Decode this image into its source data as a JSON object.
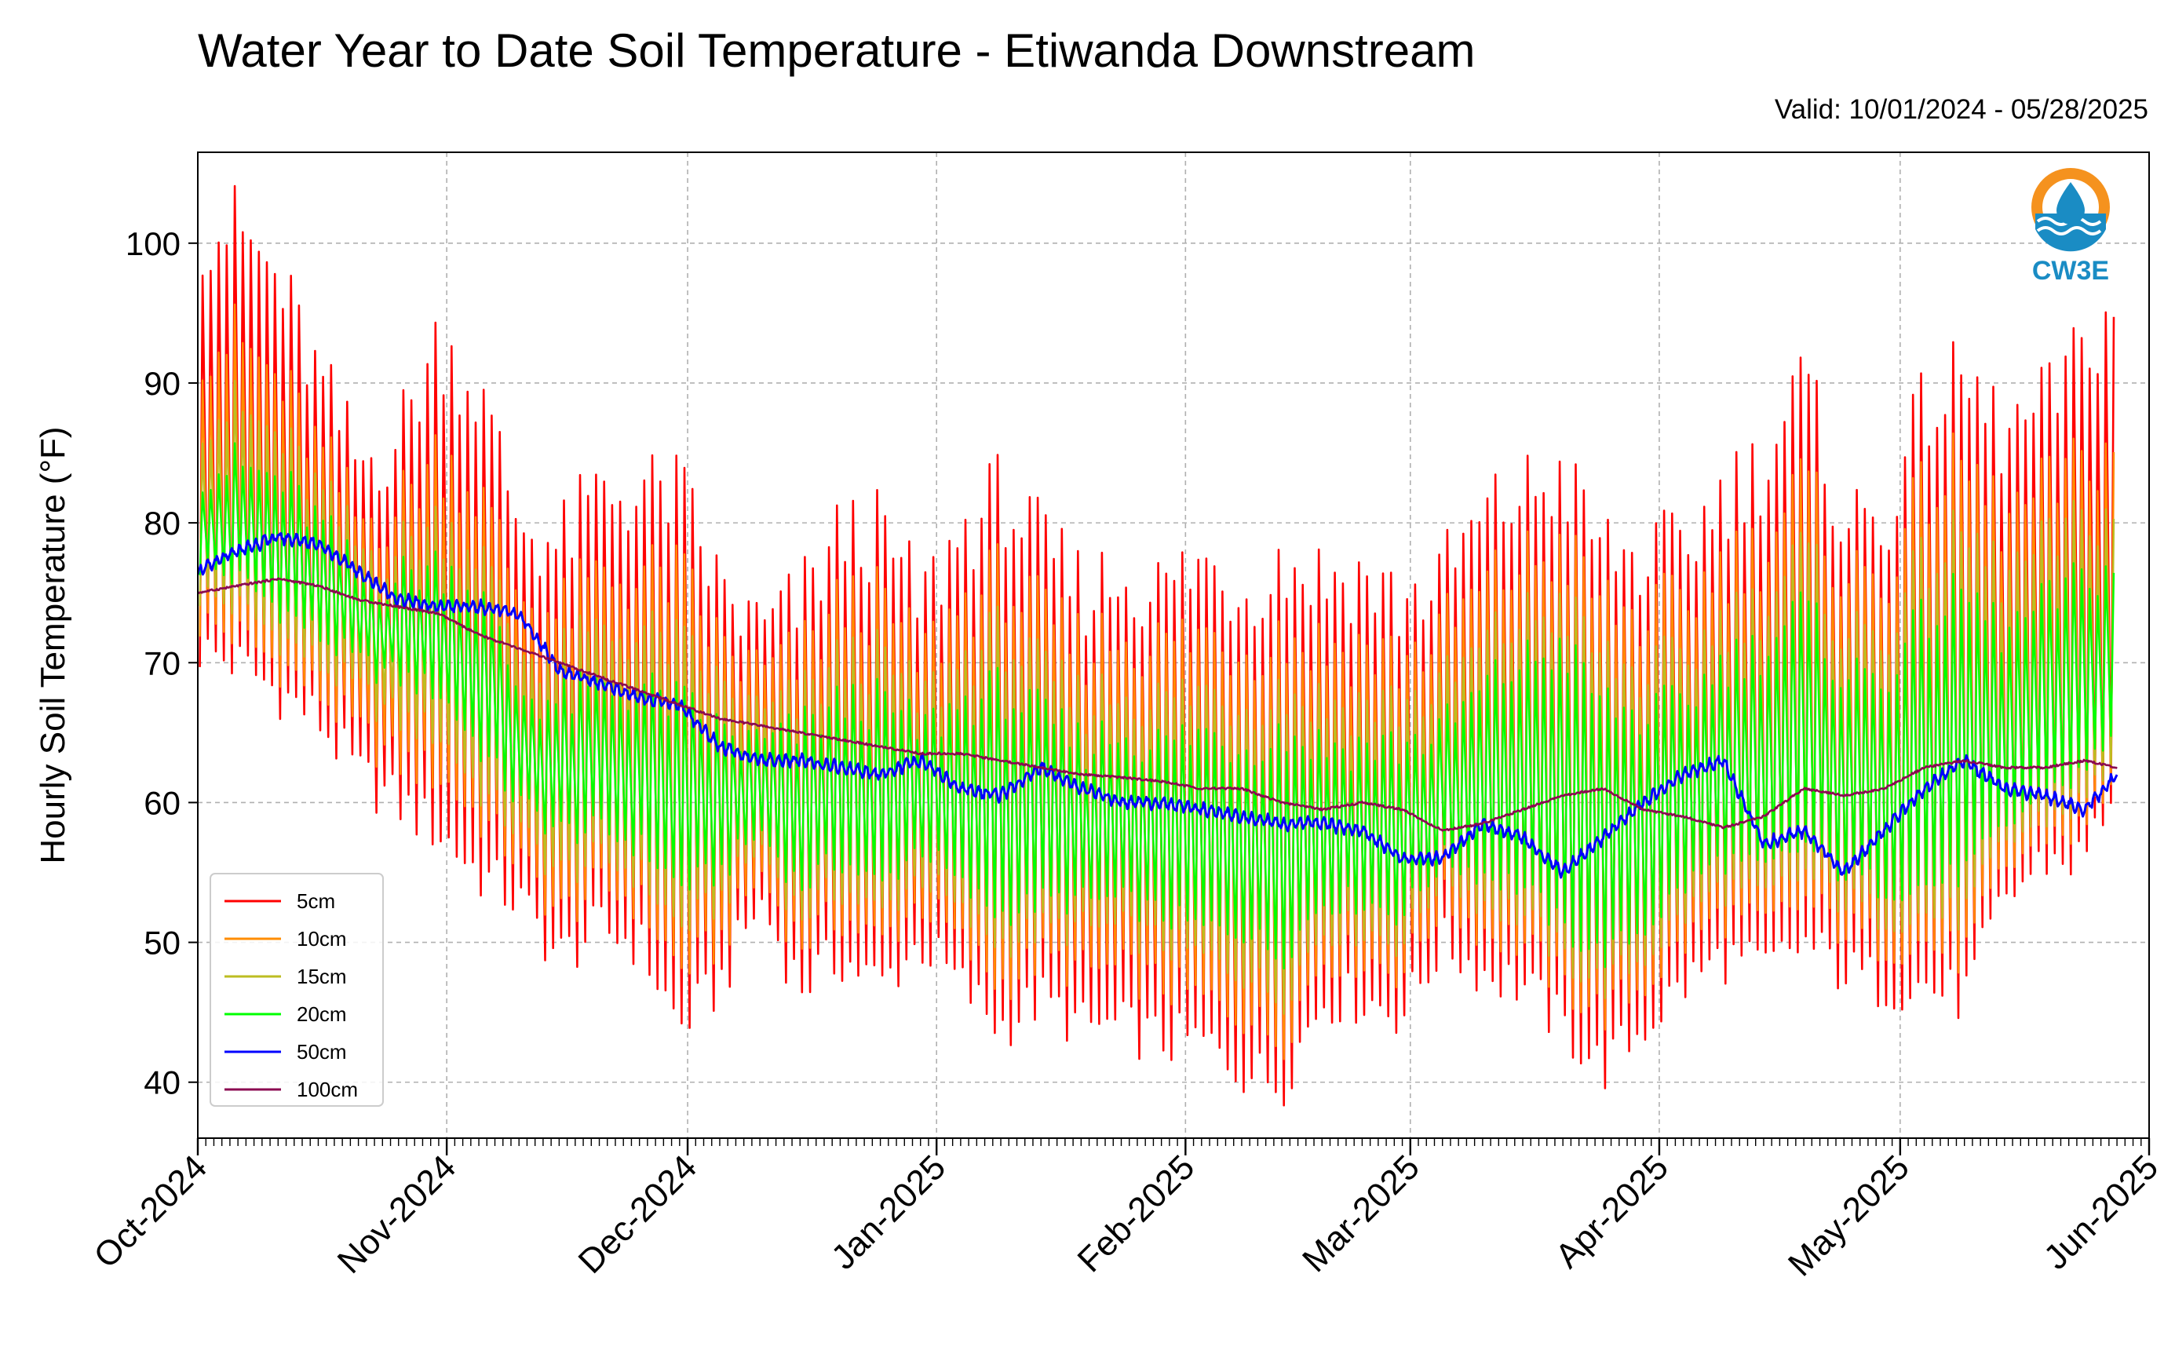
{
  "title": "Water Year to Date Soil Temperature - Etiwanda Downstream",
  "valid_label": "Valid: 10/01/2024 - 05/28/2025",
  "logo": {
    "text": "CW3E",
    "icon": "cw3e-water-drop-logo",
    "colors": [
      "#f5921e",
      "#1a8cc4"
    ]
  },
  "chart_data": {
    "type": "line",
    "title": "Water Year to Date Soil Temperature - Etiwanda Downstream",
    "subtitle": "Valid: 10/01/2024 - 05/28/2025",
    "xlabel": "",
    "ylabel": "Hourly Soil Temperature ($^\\circ$F)",
    "ylabel_display": "Hourly Soil Temperature (°F)",
    "xlim": [
      "2024-10-01",
      "2025-06-01"
    ],
    "ylim": [
      36,
      106.5
    ],
    "x_ticks": [
      "Oct-2024",
      "Nov-2024",
      "Dec-2024",
      "Jan-2025",
      "Feb-2025",
      "Mar-2025",
      "Apr-2025",
      "May-2025",
      "Jun-2025"
    ],
    "x_tick_dates": [
      "2024-10-01",
      "2024-11-01",
      "2024-12-01",
      "2025-01-01",
      "2025-02-01",
      "2025-03-01",
      "2025-04-01",
      "2025-05-01",
      "2025-06-01"
    ],
    "y_ticks": [
      40,
      50,
      60,
      70,
      80,
      90,
      100
    ],
    "grid": true,
    "legend_position": "bottom-left",
    "x_days": [
      0,
      5,
      10,
      15,
      20,
      25,
      30,
      35,
      40,
      45,
      50,
      55,
      60,
      65,
      70,
      75,
      80,
      85,
      90,
      95,
      100,
      105,
      110,
      115,
      120,
      125,
      130,
      135,
      140,
      145,
      150,
      155,
      160,
      165,
      170,
      175,
      180,
      185,
      190,
      195,
      200,
      205,
      210,
      215,
      220,
      225,
      230,
      235,
      239
    ],
    "x_start_date": "2024-10-01",
    "series": [
      {
        "name": "5cm",
        "color": "#ff0000",
        "lineWidth": 2.6,
        "daily_min": [
          71,
          70,
          68,
          66,
          62,
          60,
          58,
          55,
          53,
          49,
          51,
          50,
          44,
          47,
          53,
          47,
          49,
          47,
          50,
          47,
          44,
          46,
          44,
          44,
          43,
          43,
          41,
          40,
          46,
          46,
          45,
          50,
          48,
          47,
          44,
          41,
          44,
          47,
          49,
          48,
          50,
          48,
          47,
          47,
          46,
          53,
          56,
          56,
          62
        ],
        "daily_max": [
          101,
          101,
          97,
          90,
          84,
          86,
          93,
          89,
          80,
          78,
          82,
          82,
          82,
          75,
          72,
          74,
          79,
          79,
          74,
          79,
          82,
          78,
          75,
          76,
          75,
          77,
          75,
          77,
          76,
          76,
          74,
          76,
          80,
          82,
          83,
          78,
          77,
          78,
          82,
          84,
          90,
          80,
          80,
          88,
          90,
          86,
          88,
          92,
          96
        ]
      },
      {
        "name": "10cm",
        "color": "#ff8c00",
        "lineWidth": 2.4,
        "daily_min": [
          73,
          72,
          70,
          68,
          65,
          63,
          62,
          59,
          56,
          52,
          54,
          53,
          48,
          50,
          55,
          50,
          52,
          50,
          53,
          50,
          47,
          49,
          48,
          48,
          47,
          46,
          45,
          43,
          49,
          49,
          48,
          53,
          51,
          50,
          47,
          45,
          47,
          50,
          52,
          51,
          53,
          51,
          50,
          50,
          49,
          55,
          58,
          58,
          63
        ],
        "daily_max": [
          93,
          93,
          90,
          85,
          80,
          81,
          85,
          82,
          75,
          73,
          76,
          76,
          76,
          71,
          69,
          70,
          74,
          74,
          70,
          74,
          76,
          73,
          71,
          72,
          71,
          72,
          71,
          72,
          71,
          71,
          70,
          72,
          75,
          77,
          78,
          74,
          73,
          74,
          77,
          78,
          83,
          76,
          76,
          82,
          84,
          80,
          82,
          84,
          86
        ]
      },
      {
        "name": "15cm",
        "color": "#bcbd22",
        "lineWidth": 2.4,
        "daily_min": [
          75,
          74,
          72,
          70,
          68,
          66,
          65,
          61,
          58,
          55,
          56,
          55,
          51,
          53,
          57,
          52,
          54,
          52,
          55,
          52,
          50,
          51,
          51,
          51,
          50,
          49,
          48,
          46,
          51,
          51,
          50,
          55,
          53,
          52,
          49,
          47,
          49,
          52,
          54,
          53,
          55,
          53,
          52,
          52,
          52,
          57,
          59,
          60,
          64
        ],
        "daily_max": [
          88,
          88,
          86,
          82,
          78,
          78,
          80,
          78,
          71,
          70,
          72,
          72,
          71,
          68,
          66,
          67,
          70,
          70,
          67,
          70,
          72,
          69,
          67,
          68,
          67,
          68,
          67,
          68,
          67,
          67,
          67,
          68,
          71,
          73,
          74,
          70,
          69,
          70,
          73,
          74,
          78,
          72,
          72,
          77,
          79,
          76,
          78,
          80,
          81
        ]
      },
      {
        "name": "20cm",
        "color": "#00ff00",
        "lineWidth": 2.4,
        "daily_min": [
          77,
          76,
          74,
          72,
          70,
          69,
          68,
          64,
          60,
          58,
          58,
          57,
          54,
          55,
          58,
          54,
          56,
          54,
          57,
          54,
          52,
          53,
          53,
          53,
          52,
          51,
          51,
          49,
          53,
          53,
          52,
          56,
          55,
          54,
          51,
          49,
          51,
          54,
          56,
          55,
          57,
          55,
          54,
          54,
          55,
          58,
          61,
          62,
          66
        ],
        "daily_max": [
          84,
          84,
          83,
          80,
          76,
          76,
          77,
          75,
          68,
          67,
          68,
          68,
          67,
          65,
          64,
          65,
          67,
          67,
          65,
          67,
          68,
          66,
          64,
          65,
          64,
          65,
          64,
          65,
          64,
          64,
          64,
          65,
          68,
          70,
          71,
          67,
          66,
          67,
          70,
          71,
          74,
          69,
          69,
          73,
          75,
          72,
          74,
          76,
          77
        ]
      },
      {
        "name": "50cm",
        "color": "#0000ff",
        "lineWidth": 3,
        "values": [
          76.5,
          78,
          79,
          78.5,
          76.5,
          74.5,
          74,
          74,
          73.5,
          69.5,
          68.5,
          67.5,
          67,
          64,
          63,
          63,
          62.5,
          62,
          63,
          61,
          60.5,
          62.5,
          61,
          60,
          60,
          59.5,
          59,
          58.5,
          58.5,
          58,
          56,
          56,
          58.5,
          57.5,
          55,
          57.5,
          60,
          62,
          63,
          57,
          58,
          55,
          58,
          61,
          63,
          61,
          60.5,
          59.5,
          62
        ]
      },
      {
        "name": "100cm",
        "color": "#8b0a50",
        "lineWidth": 2.6,
        "values": [
          75,
          75.5,
          76,
          75.5,
          74.5,
          74,
          73.5,
          72,
          71,
          70,
          69,
          68,
          67,
          66,
          65.5,
          65,
          64.5,
          64,
          63.5,
          63.5,
          63,
          62.5,
          62,
          61.8,
          61.5,
          61,
          61,
          60,
          59.5,
          60,
          59.5,
          58,
          58.5,
          59.5,
          60.5,
          61,
          59.5,
          59,
          58.2,
          59,
          61,
          60.5,
          61,
          62.5,
          63,
          62.5,
          62.5,
          63,
          62.5
        ]
      }
    ]
  }
}
